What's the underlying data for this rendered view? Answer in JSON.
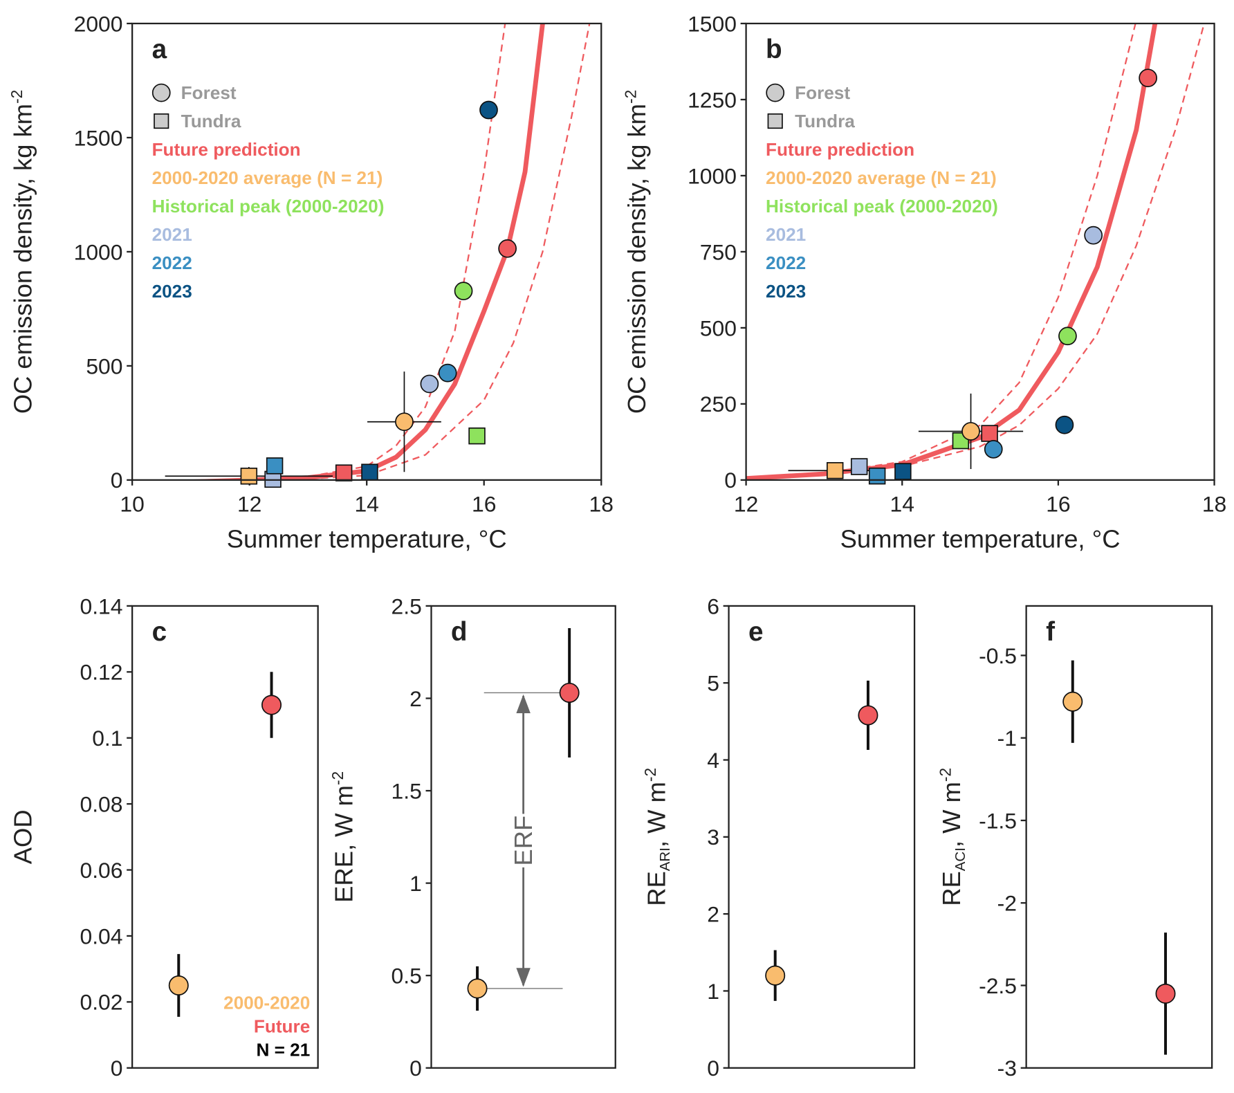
{
  "chart_data": [
    {
      "type": "scatter",
      "label": "a",
      "xlabel": "Summer temperature, °C",
      "ylabel": {
        "text": "OC emission density, kg km",
        "sup": "-2"
      },
      "xlim": [
        10,
        18
      ],
      "xticks": [
        10,
        12,
        14,
        16,
        18
      ],
      "ylim": [
        0,
        2000
      ],
      "yticks": [
        0,
        500,
        1000,
        1500,
        2000
      ],
      "legend": [
        {
          "text": "Forest",
          "color": "#999999",
          "marker": "circle"
        },
        {
          "text": "Tundra",
          "color": "#999999",
          "marker": "square"
        },
        {
          "text": "Future prediction",
          "color": "#ef5a5e"
        },
        {
          "text": "2000-2020 average (N = 21)",
          "color": "#f9bc6e"
        },
        {
          "text": "Historical peak (2000-2020)",
          "color": "#8ee25d"
        },
        {
          "text": "2021",
          "color": "#a8bcdf"
        },
        {
          "text": "2022",
          "color": "#3a8fc2"
        },
        {
          "text": "2023",
          "color": "#0b5384"
        }
      ],
      "lines": [
        {
          "color": "#ef5a5e",
          "dashed": true,
          "x": [
            10,
            12,
            13,
            14,
            14.5,
            15,
            15.5,
            16,
            16.36
          ],
          "values": [
            -10,
            0,
            15,
            60,
            150,
            320,
            650,
            1350,
            2000
          ]
        },
        {
          "color": "#ef5a5e",
          "dashed": true,
          "x": [
            10,
            12,
            13,
            14,
            15,
            15.5,
            16,
            16.5,
            17,
            17.5,
            17.8
          ],
          "values": [
            -10,
            0,
            5,
            20,
            110,
            230,
            350,
            600,
            1000,
            1600,
            2000
          ]
        },
        {
          "color": "#ef5a5e",
          "dashed": false,
          "x": [
            10,
            11,
            12,
            13,
            14,
            14.5,
            15,
            15.5,
            16,
            16.4,
            16.7,
            17
          ],
          "values": [
            -10,
            -8,
            0,
            10,
            40,
            100,
            220,
            420,
            740,
            1010,
            1350,
            2000
          ]
        }
      ],
      "points": [
        {
          "marker": "square",
          "color": "#f9bc6e",
          "x": 11.99,
          "y": 17,
          "xerr": 1.43,
          "yerr": 40
        },
        {
          "marker": "square",
          "color": "#ef5a5e",
          "x": 13.61,
          "y": 31
        },
        {
          "marker": "square",
          "color": "#8ee25d",
          "x": 15.88,
          "y": 193
        },
        {
          "marker": "square",
          "color": "#a8bcdf",
          "x": 12.4,
          "y": 3
        },
        {
          "marker": "square",
          "color": "#3a8fc2",
          "x": 12.43,
          "y": 62
        },
        {
          "marker": "square",
          "color": "#0b5384",
          "x": 14.05,
          "y": 34
        },
        {
          "marker": "circle",
          "color": "#f9bc6e",
          "x": 14.64,
          "y": 255,
          "xerr": 0.63,
          "yerr": 220
        },
        {
          "marker": "circle",
          "color": "#ef5a5e",
          "x": 16.4,
          "y": 1014
        },
        {
          "marker": "circle",
          "color": "#8ee25d",
          "x": 15.65,
          "y": 828
        },
        {
          "marker": "circle",
          "color": "#a8bcdf",
          "x": 15.07,
          "y": 421
        },
        {
          "marker": "circle",
          "color": "#3a8fc2",
          "x": 15.38,
          "y": 469
        },
        {
          "marker": "circle",
          "color": "#0b5384",
          "x": 16.08,
          "y": 1621
        }
      ]
    },
    {
      "type": "scatter",
      "label": "b",
      "xlabel": "Summer temperature, °C",
      "ylabel": {
        "text": "OC emission density, kg km",
        "sup": "-2"
      },
      "xlim": [
        12,
        18
      ],
      "xticks": [
        12,
        14,
        16,
        18
      ],
      "ylim": [
        0,
        1500
      ],
      "yticks": [
        0,
        250,
        500,
        750,
        1000,
        1250,
        1500
      ],
      "legend": [
        {
          "text": "Forest",
          "color": "#999999",
          "marker": "circle"
        },
        {
          "text": "Tundra",
          "color": "#999999",
          "marker": "square"
        },
        {
          "text": "Future prediction",
          "color": "#ef5a5e"
        },
        {
          "text": "2000-2020 average (N = 21)",
          "color": "#f9bc6e"
        },
        {
          "text": "Historical peak (2000-2020)",
          "color": "#8ee25d"
        },
        {
          "text": "2021",
          "color": "#a8bcdf"
        },
        {
          "text": "2022",
          "color": "#3a8fc2"
        },
        {
          "text": "2023",
          "color": "#0b5384"
        }
      ],
      "lines": [
        {
          "color": "#ef5a5e",
          "dashed": true,
          "x": [
            12,
            13,
            14,
            15,
            15.5,
            16,
            16.5,
            16.99
          ],
          "values": [
            5,
            22,
            60,
            180,
            320,
            600,
            1000,
            1500
          ]
        },
        {
          "color": "#ef5a5e",
          "dashed": true,
          "x": [
            12,
            13,
            14,
            15,
            15.5,
            16,
            16.5,
            17,
            17.5,
            17.87
          ],
          "values": [
            5,
            18,
            45,
            110,
            180,
            300,
            480,
            770,
            1150,
            1500
          ]
        },
        {
          "color": "#ef5a5e",
          "dashed": false,
          "x": [
            12,
            13,
            14,
            15,
            15.5,
            16,
            16.5,
            17,
            17.24
          ],
          "values": [
            5,
            20,
            50,
            140,
            230,
            420,
            700,
            1150,
            1500
          ]
        }
      ],
      "points": [
        {
          "marker": "square",
          "color": "#f9bc6e",
          "x": 13.14,
          "y": 31,
          "xerr": 0.6,
          "yerr": 25
        },
        {
          "marker": "square",
          "color": "#ef5a5e",
          "x": 15.12,
          "y": 153
        },
        {
          "marker": "square",
          "color": "#8ee25d",
          "x": 14.75,
          "y": 129
        },
        {
          "marker": "square",
          "color": "#a8bcdf",
          "x": 13.45,
          "y": 44
        },
        {
          "marker": "square",
          "color": "#3a8fc2",
          "x": 13.68,
          "y": 13
        },
        {
          "marker": "square",
          "color": "#0b5384",
          "x": 14.01,
          "y": 28
        },
        {
          "marker": "circle",
          "color": "#f9bc6e",
          "x": 14.88,
          "y": 160,
          "xerr": 0.67,
          "yerr": 124
        },
        {
          "marker": "circle",
          "color": "#ef5a5e",
          "x": 17.15,
          "y": 1321
        },
        {
          "marker": "circle",
          "color": "#8ee25d",
          "x": 16.12,
          "y": 473
        },
        {
          "marker": "circle",
          "color": "#a8bcdf",
          "x": 16.45,
          "y": 804
        },
        {
          "marker": "circle",
          "color": "#3a8fc2",
          "x": 15.17,
          "y": 101
        },
        {
          "marker": "circle",
          "color": "#0b5384",
          "x": 16.08,
          "y": 181
        }
      ]
    },
    {
      "type": "errorbar",
      "label": "c",
      "ylabel": "AOD",
      "ylim": [
        0,
        0.14
      ],
      "yticks": [
        0,
        0.02,
        0.04,
        0.06,
        0.08,
        0.1,
        0.12,
        0.14
      ],
      "points": [
        {
          "color": "#f9bc6e",
          "value": 0.025,
          "error": 0.0095
        },
        {
          "color": "#ef5a5e",
          "value": 0.11,
          "error": 0.01
        }
      ],
      "notes": [
        {
          "text": "2000-2020",
          "color": "#f9bc6e"
        },
        {
          "text": "Future",
          "color": "#ef5a5e"
        },
        {
          "text": "N = 21",
          "color": "#000000"
        }
      ]
    },
    {
      "type": "errorbar",
      "label": "d",
      "ylabel": {
        "text": "ERE, W m",
        "sup": "-2"
      },
      "ylim": [
        0,
        2.5
      ],
      "yticks": [
        0,
        0.5,
        1,
        1.5,
        2,
        2.5
      ],
      "points": [
        {
          "color": "#f9bc6e",
          "value": 0.43,
          "error": 0.12
        },
        {
          "color": "#ef5a5e",
          "value": 2.03,
          "error": 0.35
        }
      ],
      "annotation": "ERF"
    },
    {
      "type": "errorbar",
      "label": "e",
      "ylabel": {
        "text": "RE",
        "sub": "ARI",
        "text2": ",  W m",
        "sup": "-2"
      },
      "ylim": [
        0,
        6
      ],
      "yticks": [
        0,
        1,
        2,
        3,
        4,
        5,
        6
      ],
      "points": [
        {
          "color": "#f9bc6e",
          "value": 1.2,
          "error": 0.33
        },
        {
          "color": "#ef5a5e",
          "value": 4.58,
          "error": 0.45
        }
      ]
    },
    {
      "type": "errorbar",
      "label": "f",
      "ylabel": {
        "text": "RE",
        "sub": "ACI",
        "text2": ",  W m",
        "sup": "-2"
      },
      "ylim": [
        -3,
        -0.2
      ],
      "yticks": [
        -3,
        -2.5,
        -2,
        -1.5,
        -1,
        -0.5
      ],
      "points": [
        {
          "color": "#f9bc6e",
          "value": -0.78,
          "error": 0.25
        },
        {
          "color": "#ef5a5e",
          "value": -2.55,
          "error": 0.37
        }
      ]
    }
  ]
}
